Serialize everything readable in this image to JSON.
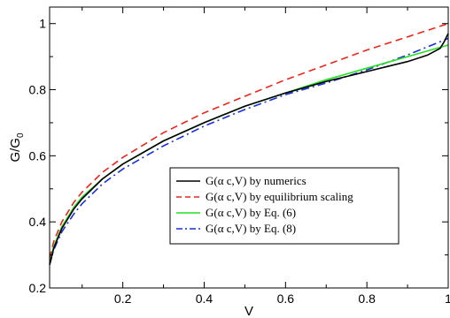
{
  "chart_data": {
    "type": "line",
    "title": "",
    "xlabel": "V",
    "ylabel": "G/G",
    "ylabel_subscript": "0",
    "xlim": [
      0.02,
      1.0
    ],
    "ylim": [
      0.2,
      1.05
    ],
    "x_ticks": [
      0.2,
      0.4,
      0.6,
      0.8,
      1.0
    ],
    "x_tick_labels": [
      "0.2",
      "0.4",
      "0.6",
      "0.8",
      "1"
    ],
    "y_ticks": [
      0.2,
      0.4,
      0.6,
      0.8,
      1.0
    ],
    "y_tick_labels": [
      "0.2",
      "0.4",
      "0.6",
      "0.8",
      "1"
    ],
    "grid": false,
    "legend_position": "center-right",
    "series": [
      {
        "name": "G(α c,V) by numerics",
        "color": "#000000",
        "dash": "solid",
        "x": [
          0.02,
          0.03,
          0.05,
          0.08,
          0.1,
          0.15,
          0.2,
          0.3,
          0.4,
          0.5,
          0.6,
          0.7,
          0.75,
          0.8,
          0.85,
          0.9,
          0.95,
          0.98,
          0.99,
          1.0
        ],
        "y": [
          0.27,
          0.32,
          0.38,
          0.44,
          0.47,
          0.53,
          0.575,
          0.645,
          0.7,
          0.75,
          0.79,
          0.825,
          0.84,
          0.855,
          0.87,
          0.885,
          0.905,
          0.925,
          0.945,
          0.97
        ]
      },
      {
        "name": "G(α c,V) by equilibrium scaling",
        "color": "#e8261e",
        "dash": "dashed",
        "x": [
          0.02,
          0.03,
          0.05,
          0.08,
          0.1,
          0.15,
          0.2,
          0.3,
          0.4,
          0.5,
          0.6,
          0.7,
          0.8,
          0.9,
          1.0
        ],
        "y": [
          0.29,
          0.34,
          0.4,
          0.46,
          0.49,
          0.55,
          0.595,
          0.67,
          0.73,
          0.78,
          0.83,
          0.875,
          0.92,
          0.96,
          1.0
        ]
      },
      {
        "name": "G(α c,V) by Eq. (6)",
        "color": "#22e022",
        "dash": "solid",
        "x": [
          0.02,
          0.03,
          0.05,
          0.08,
          0.1,
          0.15,
          0.2,
          0.3,
          0.4,
          0.5,
          0.6,
          0.7,
          0.8,
          0.9,
          1.0
        ],
        "y": [
          0.275,
          0.325,
          0.385,
          0.445,
          0.475,
          0.53,
          0.575,
          0.645,
          0.7,
          0.75,
          0.79,
          0.83,
          0.865,
          0.9,
          0.935
        ]
      },
      {
        "name": "G(α c,V) by Eq. (8)",
        "color": "#1a2fd6",
        "dash": "dashdot",
        "x": [
          0.02,
          0.03,
          0.05,
          0.08,
          0.1,
          0.15,
          0.2,
          0.3,
          0.4,
          0.5,
          0.6,
          0.7,
          0.8,
          0.9,
          1.0
        ],
        "y": [
          0.27,
          0.315,
          0.37,
          0.425,
          0.455,
          0.515,
          0.56,
          0.63,
          0.69,
          0.74,
          0.785,
          0.82,
          0.86,
          0.905,
          0.955
        ]
      }
    ]
  }
}
